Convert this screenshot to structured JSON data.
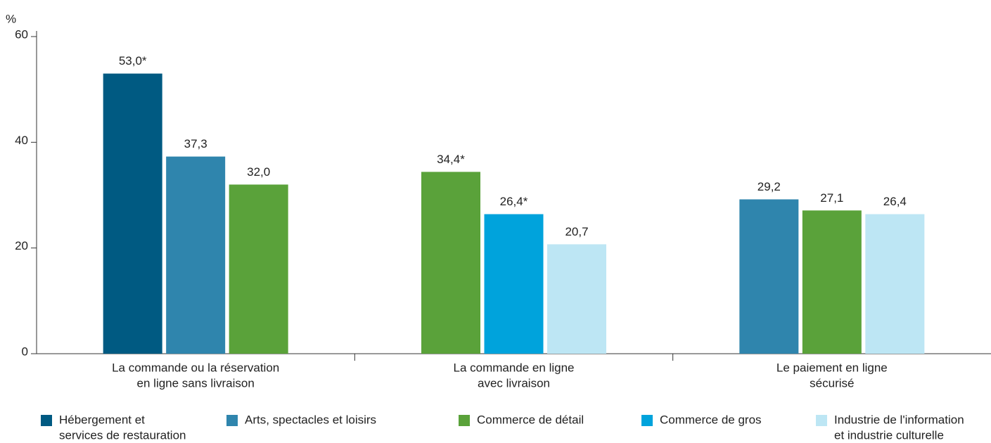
{
  "chart_data": {
    "type": "bar",
    "y_label": "%",
    "categories": [
      [
        "La commande ou la réservation",
        "en ligne sans livraison"
      ],
      [
        "La commande en ligne",
        "avec livraison"
      ],
      [
        "Le paiement en ligne",
        "sécurisé"
      ]
    ],
    "series": [
      {
        "name": [
          "Hébergement et",
          "services de restauration"
        ],
        "color": "#005a82",
        "values": [
          53.0,
          null,
          null
        ],
        "value_labels": [
          "53,0*",
          null,
          null
        ]
      },
      {
        "name": [
          "Arts, spectacles et loisirs"
        ],
        "color": "#2f85ad",
        "values": [
          37.3,
          null,
          29.2
        ],
        "value_labels": [
          "37,3",
          null,
          "29,2"
        ]
      },
      {
        "name": [
          "Commerce de détail"
        ],
        "color": "#5aa23a",
        "values": [
          32.0,
          34.4,
          27.1
        ],
        "value_labels": [
          "32,0",
          "34,4*",
          "27,1"
        ]
      },
      {
        "name": [
          "Commerce de gros"
        ],
        "color": "#00a3dc",
        "values": [
          null,
          26.4,
          null
        ],
        "value_labels": [
          null,
          "26,4*",
          null
        ]
      },
      {
        "name": [
          "Industrie de l'information",
          "et industrie culturelle"
        ],
        "color": "#bde6f4",
        "values": [
          null,
          20.7,
          26.4
        ],
        "value_labels": [
          null,
          "20,7",
          "26,4"
        ]
      }
    ],
    "ylim": [
      0,
      60
    ],
    "yticks": [
      0,
      20,
      40,
      60
    ],
    "grid": false,
    "legend": "bottom"
  }
}
